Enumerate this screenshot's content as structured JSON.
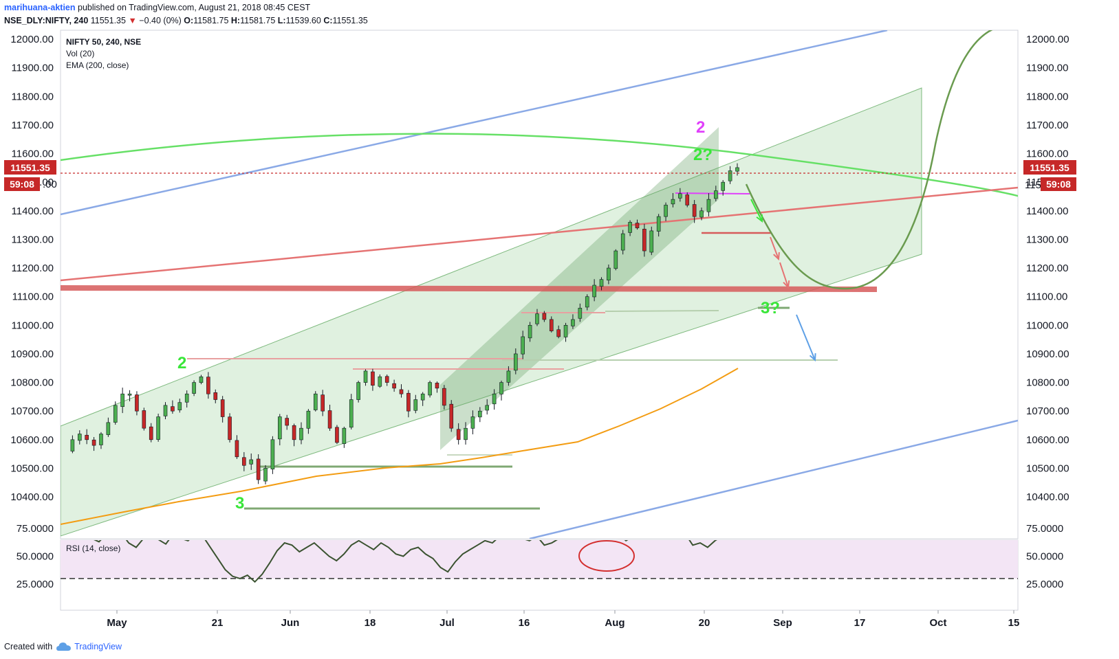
{
  "header": {
    "author": "marihuana-aktien",
    "published": "published on TradingView.com, August 21, 2018 08:45 CEST",
    "symbol": "NSE_DLY:NIFTY, 240",
    "price": "11551.35",
    "change_arrow": "▼",
    "change": "−0.40 (0%)",
    "o_label": "O:",
    "o_value": "11581.75",
    "h_label": "H:",
    "h_value": "11581.75",
    "l_label": "L:",
    "l_value": "11539.60",
    "c_label": "C:",
    "c_value": "11551.35"
  },
  "legend": {
    "title": "NIFTY 50, 240, NSE",
    "vol": "Vol (20)",
    "ema": "EMA (200, close)",
    "rsi": "RSI (14, close)"
  },
  "price_badge": "11551.35",
  "countdown_badge": "59:08",
  "right_partial_label": "115",
  "waves": [
    "2",
    "3",
    "2",
    "2?",
    "3?"
  ],
  "footer": {
    "created": "Created with",
    "brand": "TradingView"
  },
  "colors": {
    "up": "#4caf50",
    "down": "#c62828",
    "green_channel": "#a5d6a7",
    "blue_line": "#8aa9e6",
    "red_line": "#e57373",
    "ema": "#f39c12",
    "arc": "#6a9b4f",
    "badge": "#c62828",
    "rsi_band": "#f3e5f5",
    "label_green": "#39e639",
    "label_pink": "#e040fb"
  },
  "chart_data": [
    {
      "type": "candlestick",
      "title": "NIFTY 50, 240, NSE",
      "ylim": [
        10320,
        12040
      ],
      "yticks": [
        12000,
        11900,
        11800,
        11700,
        11600,
        11500,
        11400,
        11300,
        11200,
        11100,
        11000,
        10900,
        10800,
        10700,
        10600,
        10500,
        10400
      ],
      "xticks": [
        "May",
        "21",
        "Jun",
        "18",
        "Jul",
        "16",
        "Aug",
        "20",
        "Sep",
        "17",
        "Oct",
        "15"
      ],
      "last_price": 11551.35,
      "series": [
        {
          "name": "NIFTY 50",
          "closes": [
            10560,
            10600,
            10620,
            10600,
            10580,
            10620,
            10660,
            10720,
            10760,
            10760,
            10700,
            10640,
            10600,
            10680,
            10720,
            10700,
            10730,
            10760,
            10800,
            10820,
            10760,
            10740,
            10680,
            10600,
            10540,
            10510,
            10530,
            10460,
            10500,
            10600,
            10680,
            10650,
            10600,
            10640,
            10700,
            10760,
            10700,
            10640,
            10590,
            10640,
            10740,
            10800,
            10840,
            10790,
            10820,
            10800,
            10780,
            10760,
            10700,
            10740,
            10760,
            10800,
            10780,
            10720,
            10640,
            10600,
            10640,
            10680,
            10700,
            10720,
            10760,
            10800,
            10840,
            10900,
            10960,
            11000,
            11040,
            11020,
            10980,
            10960,
            11000,
            11020,
            11060,
            11100,
            11140,
            11160,
            11200,
            11260,
            11320,
            11360,
            11340,
            11260,
            11330,
            11380,
            11420,
            11440,
            11460,
            11420,
            11380,
            11400,
            11440,
            11470,
            11500,
            11540,
            11551
          ]
        },
        {
          "name": "EMA (200, close)",
          "points": [
            [
              0,
              10370
            ],
            [
              0.1,
              10440
            ],
            [
              0.2,
              10480
            ],
            [
              0.3,
              10530
            ],
            [
              0.4,
              10570
            ],
            [
              0.5,
              10600
            ],
            [
              0.6,
              10670
            ],
            [
              0.7,
              10760
            ],
            [
              0.8,
              10830
            ],
            [
              0.9,
              10860
            ],
            [
              1.0,
              10890
            ]
          ]
        }
      ]
    },
    {
      "type": "line",
      "title": "RSI (14, close)",
      "ylim": [
        25,
        80
      ],
      "yticks": [
        75,
        50,
        25
      ],
      "ytick_labels": [
        "75.0000",
        "50.0000",
        "25.0000"
      ],
      "levels": [
        70,
        30
      ],
      "series": [
        {
          "name": "RSI (14, close)",
          "values": [
            65,
            70,
            68,
            72,
            66,
            63,
            70,
            74,
            71,
            62,
            58,
            66,
            69,
            65,
            61,
            70,
            66,
            64,
            70,
            68,
            58,
            48,
            38,
            32,
            30,
            33,
            27,
            34,
            44,
            55,
            62,
            60,
            54,
            58,
            62,
            56,
            50,
            46,
            52,
            60,
            64,
            60,
            56,
            62,
            58,
            52,
            50,
            56,
            58,
            52,
            48,
            40,
            36,
            45,
            52,
            56,
            60,
            64,
            62,
            68,
            70,
            72,
            66,
            64,
            68,
            60,
            62,
            66,
            70,
            72,
            76,
            78,
            80,
            78,
            76,
            70,
            64,
            68,
            70,
            72,
            68,
            66,
            70,
            72,
            70,
            60,
            62,
            58,
            64,
            68,
            70,
            72
          ]
        }
      ]
    }
  ]
}
